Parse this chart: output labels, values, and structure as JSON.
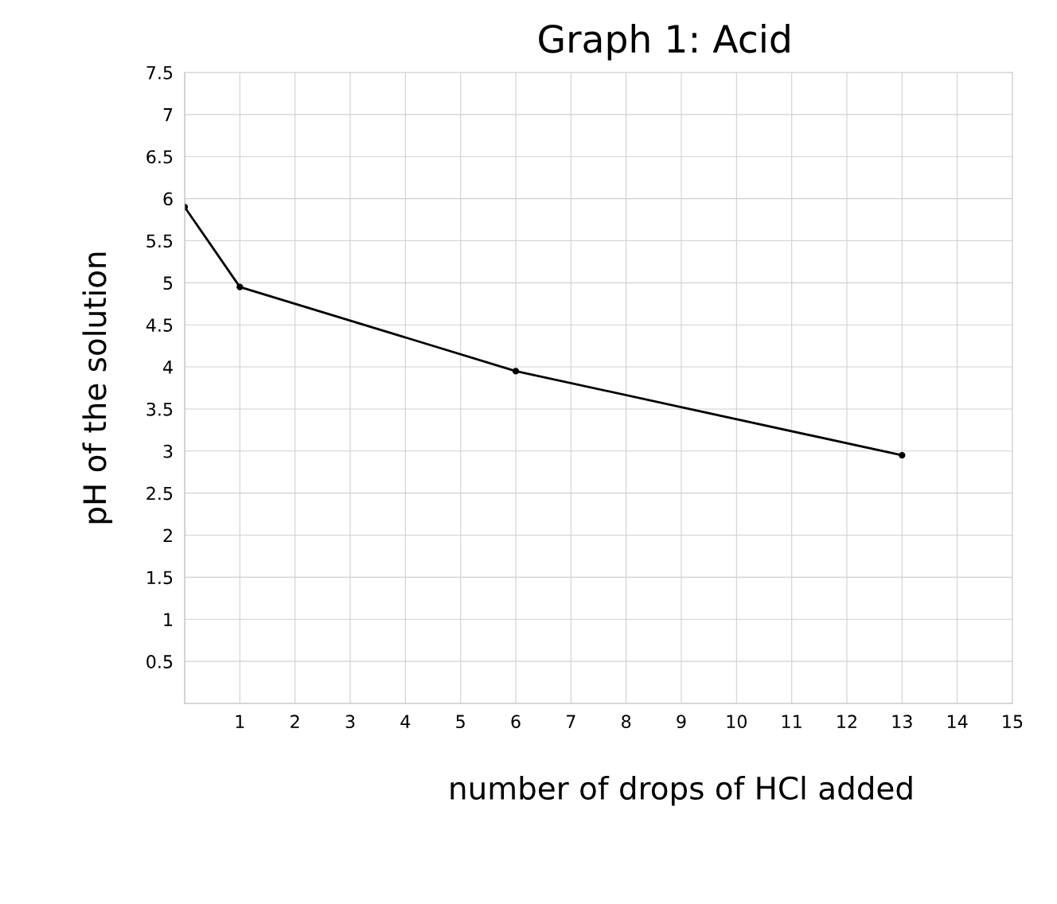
{
  "chart_data": {
    "type": "line",
    "title": "Graph 1: Acid",
    "xlabel": "number of drops of HCl added",
    "ylabel": "pH of the solution",
    "x": [
      0,
      1,
      6,
      13
    ],
    "series": [
      {
        "color": "#000000",
        "values": [
          5.9,
          4.95,
          3.95,
          2.95
        ]
      }
    ],
    "xlim": [
      0,
      15
    ],
    "xticks": [
      {
        "value": 0,
        "label": null
      },
      1,
      2,
      3,
      4,
      5,
      6,
      7,
      8,
      9,
      10,
      11,
      12,
      13,
      14,
      15
    ],
    "ylim": [
      0,
      7.5
    ],
    "yticks": [
      {
        "value": 0,
        "label": null
      },
      0.5,
      1,
      1.5,
      2,
      2.5,
      3,
      3.5,
      4,
      4.5,
      5,
      5.5,
      6,
      6.5,
      7,
      7.5
    ],
    "grid": true,
    "marker": "circle",
    "line_style": "solid"
  }
}
